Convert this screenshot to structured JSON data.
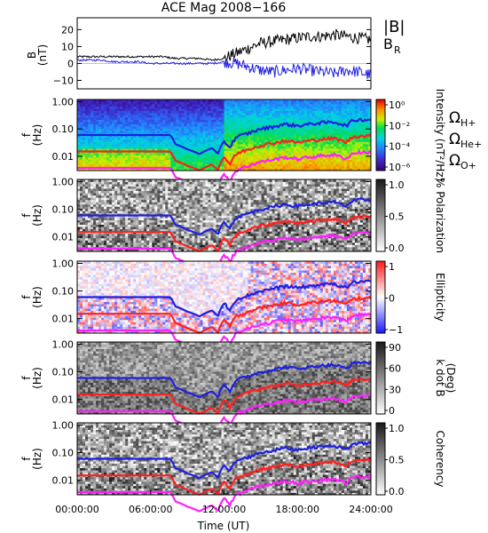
{
  "title": "ACE Mag 2008−166",
  "x_axis": {
    "label": "Time (UT)",
    "tick_labels": [
      "00:00:00",
      "06:00:00",
      "12:00:00",
      "18:00:00",
      "24:00:00"
    ],
    "range_hours": [
      0,
      24
    ]
  },
  "colors": {
    "H": "#1f1fe0",
    "He": "#ff2020",
    "O": "#ff20ff",
    "B": "#000000",
    "BR": "#1f1fe0"
  },
  "chart_data": [
    {
      "type": "line",
      "panel": "B",
      "ylabel": "B (nT)",
      "ylabel_top": "B",
      "ylabel_bottom": "(nT)",
      "ylim": [
        -15,
        27
      ],
      "yticks": [
        -10,
        0,
        10,
        20
      ],
      "ytick_labels": [
        "−10",
        "0",
        "10",
        "20"
      ],
      "legend": [
        "|B|",
        "B",
        "R"
      ],
      "series": [
        {
          "name": "|B|",
          "x": [
            0,
            1,
            2,
            3,
            4,
            5,
            6,
            7,
            8,
            9,
            10,
            11,
            12,
            13,
            14,
            15,
            16,
            17,
            18,
            19,
            20,
            21,
            22,
            23,
            24
          ],
          "values": [
            4,
            4,
            4,
            4,
            4,
            4,
            4,
            4,
            3,
            3,
            3,
            2,
            3,
            6,
            9,
            12,
            13,
            14,
            15,
            16,
            16,
            17,
            16,
            15,
            14
          ]
        },
        {
          "name": "B_R",
          "x": [
            0,
            1,
            2,
            3,
            4,
            5,
            6,
            7,
            8,
            9,
            10,
            11,
            12,
            13,
            14,
            15,
            16,
            17,
            18,
            19,
            20,
            21,
            22,
            23,
            24
          ],
          "values": [
            2,
            2,
            2,
            1,
            1,
            1,
            0,
            0,
            0,
            0,
            0,
            0,
            1,
            0,
            -2,
            -4,
            -5,
            -4,
            -3,
            -4,
            -5,
            -6,
            -4,
            -5,
            -7
          ]
        }
      ]
    },
    {
      "type": "heatmap",
      "panel": "intensity",
      "ylabel_top": "f",
      "ylabel_bottom": "(Hz)",
      "ytick_labels": [
        "1.00",
        "0.10",
        "0.01"
      ],
      "colorbar_ticks": [
        "10⁰",
        "10⁻²",
        "10⁻⁴",
        "10⁻⁶"
      ],
      "colorbar_label": "Intensity (nT²/Hz)",
      "legend": [
        {
          "sym": "Ω",
          "sub": "H+"
        },
        {
          "sym": "Ω",
          "sub": "He+"
        },
        {
          "sym": "Ω",
          "sub": "O+"
        }
      ]
    },
    {
      "type": "heatmap",
      "panel": "polarization",
      "ylabel_top": "f",
      "ylabel_bottom": "(Hz)",
      "ytick_labels": [
        "1.00",
        "0.10",
        "0.01"
      ],
      "colorbar_ticks": [
        "1.0",
        "0.5",
        "0.0"
      ],
      "colorbar_label": "% Polarization"
    },
    {
      "type": "heatmap",
      "panel": "ellipticity",
      "ylabel_top": "f",
      "ylabel_bottom": "(Hz)",
      "ytick_labels": [
        "1.00",
        "0.10",
        "0.01"
      ],
      "colorbar_ticks": [
        "1",
        "0",
        "−1"
      ],
      "colorbar_label": "Ellipticity"
    },
    {
      "type": "heatmap",
      "panel": "kdotb",
      "ylabel_top": "f",
      "ylabel_bottom": "(Hz)",
      "ytick_labels": [
        "1.00",
        "0.10",
        "0.01"
      ],
      "colorbar_ticks": [
        "90",
        "60",
        "30",
        "0"
      ],
      "colorbar_label": "k dot B",
      "colorbar_label2": "(Deg)"
    },
    {
      "type": "heatmap",
      "panel": "coherency",
      "ylabel_top": "f",
      "ylabel_bottom": "(Hz)",
      "ytick_labels": [
        "1.00",
        "0.10",
        "0.01"
      ],
      "colorbar_ticks": [
        "1.0",
        "0.5",
        "0.0"
      ],
      "colorbar_label": "Coherency"
    }
  ],
  "gyro_frequency_lines": {
    "x": [
      0,
      1,
      2,
      3,
      4,
      5,
      6,
      7,
      7.6,
      8,
      9,
      10,
      11,
      11.5,
      12,
      12.5,
      13,
      14,
      15,
      16,
      17,
      18,
      19,
      20,
      21,
      22,
      22.5,
      23,
      24
    ],
    "H_Hz": [
      0.06,
      0.06,
      0.06,
      0.06,
      0.06,
      0.06,
      0.06,
      0.06,
      0.06,
      0.028,
      0.018,
      0.012,
      0.02,
      0.012,
      0.035,
      0.02,
      0.05,
      0.07,
      0.1,
      0.12,
      0.15,
      0.13,
      0.15,
      0.17,
      0.18,
      0.13,
      0.2,
      0.22,
      0.22
    ],
    "He_Hz": [
      0.015,
      0.015,
      0.015,
      0.015,
      0.015,
      0.015,
      0.015,
      0.015,
      0.015,
      0.007,
      0.0045,
      0.003,
      0.005,
      0.003,
      0.009,
      0.005,
      0.012,
      0.018,
      0.025,
      0.03,
      0.037,
      0.032,
      0.037,
      0.042,
      0.045,
      0.032,
      0.05,
      0.055,
      0.055
    ]
  }
}
